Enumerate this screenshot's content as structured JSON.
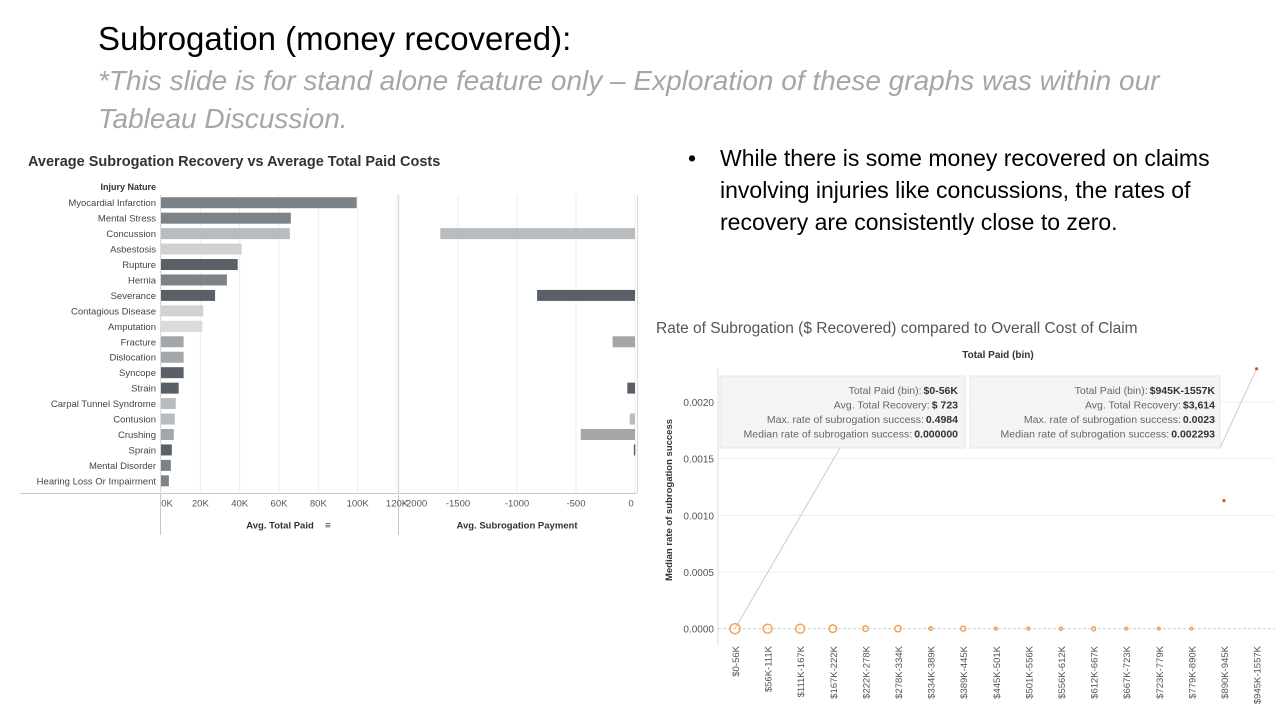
{
  "slide": {
    "title": "Subrogation (money recovered):",
    "subtitle": "*This slide is for stand alone feature only – Exploration of these graphs was within our Tableau Discussion.",
    "bullet_marker": "•",
    "bullet": "While there is some money recovered on claims involving injuries like concussions, the rates of recovery are consistently close to zero."
  },
  "chart_data": [
    {
      "type": "bar",
      "title": "Average Subrogation Recovery vs Average Total Paid Costs",
      "category_header": "Injury Nature",
      "categories": [
        "Myocardial Infarction",
        "Mental Stress",
        "Concussion",
        "Asbestosis",
        "Rupture",
        "Hernia",
        "Severance",
        "Contagious Disease",
        "Amputation",
        "Fracture",
        "Dislocation",
        "Syncope",
        "Strain",
        "Carpal Tunnel Syndrome",
        "Contusion",
        "Crushing",
        "Sprain",
        "Mental Disorder",
        "Hearing Loss Or Impairment"
      ],
      "colors": [
        "#7b8389",
        "#7b8389",
        "#b9bcbe",
        "#cfd1d3",
        "#5a6068",
        "#7b8389",
        "#5a6068",
        "#cfd1d3",
        "#d8dadb",
        "#a3a7aa",
        "#a3a7aa",
        "#5a6068",
        "#5a6068",
        "#b9bcbe",
        "#b9bcbe",
        "#a3a7aa",
        "#5a6068",
        "#7b8389",
        "#7b8389"
      ],
      "series": [
        {
          "name": "Avg. Total Paid",
          "values": [
            99500,
            66000,
            65500,
            41000,
            39000,
            33500,
            27500,
            21500,
            21000,
            11500,
            11500,
            11500,
            9000,
            7500,
            7000,
            6500,
            5500,
            5000,
            4000
          ],
          "xlim": [
            0,
            120000
          ],
          "ticks": [
            "0K",
            "20K",
            "40K",
            "60K",
            "80K",
            "100K",
            "120K"
          ],
          "xlabel": "Avg. Total Paid"
        },
        {
          "name": "Avg. Subrogation Payment",
          "values": [
            0,
            0,
            -1650,
            0,
            0,
            0,
            -830,
            0,
            0,
            -190,
            0,
            0,
            -65,
            0,
            -45,
            -460,
            -10,
            0,
            0
          ],
          "xlim": [
            -2000,
            0
          ],
          "ticks": [
            "-2000",
            "-1500",
            "-1000",
            "-500",
            "0"
          ],
          "xlabel": "Avg. Subrogation Payment"
        }
      ]
    },
    {
      "type": "scatter",
      "title": "Rate of Subrogation ($ Recovered) compared to Overall Cost of Claim",
      "top_label": "Total Paid (bin)",
      "ylabel": "Median rate of subrogation success",
      "ylim": [
        -0.0001,
        0.0023
      ],
      "yticks": [
        "0.0000",
        "0.0005",
        "0.0010",
        "0.0015",
        "0.0020"
      ],
      "categories": [
        "$0-56K",
        "$56K-111K",
        "$111K-167K",
        "$167K-222K",
        "$222K-278K",
        "$278K-334K",
        "$334K-389K",
        "$389K-445K",
        "$445K-501K",
        "$501K-556K",
        "$556K-612K",
        "$612K-667K",
        "$667K-723K",
        "$723K-779K",
        "$779K-890K",
        "$890K-945K",
        "$945K-1557K"
      ],
      "values": [
        0,
        0,
        0,
        0,
        0,
        0,
        0,
        0,
        0,
        0,
        0,
        0,
        0,
        0,
        0,
        0.00113,
        0.002293
      ],
      "marker_sizes": [
        5,
        4.5,
        4.5,
        3.8,
        2.8,
        3.2,
        1.8,
        2.5,
        1.5,
        1.5,
        1.5,
        2,
        1.3,
        1.3,
        1.3,
        1.6,
        1.6
      ],
      "marker_color": "#f0a050",
      "tooltips": [
        {
          "lines": [
            {
              "label": "Total Paid (bin):",
              "value": "$0-56K"
            },
            {
              "label": "Avg. Total Recovery:",
              "value": "$ 723"
            },
            {
              "label": "Max. rate of subrogation success:",
              "value": "0.4984"
            },
            {
              "label": "Median rate of subrogation success:",
              "value": "0.000000"
            }
          ]
        },
        {
          "lines": [
            {
              "label": "Total Paid (bin):",
              "value": "$945K-1557K"
            },
            {
              "label": "Avg. Total Recovery:",
              "value": "$3,614"
            },
            {
              "label": "Max. rate of subrogation success:",
              "value": "0.0023"
            },
            {
              "label": "Median rate of subrogation success:",
              "value": "0.002293"
            }
          ]
        }
      ]
    }
  ]
}
